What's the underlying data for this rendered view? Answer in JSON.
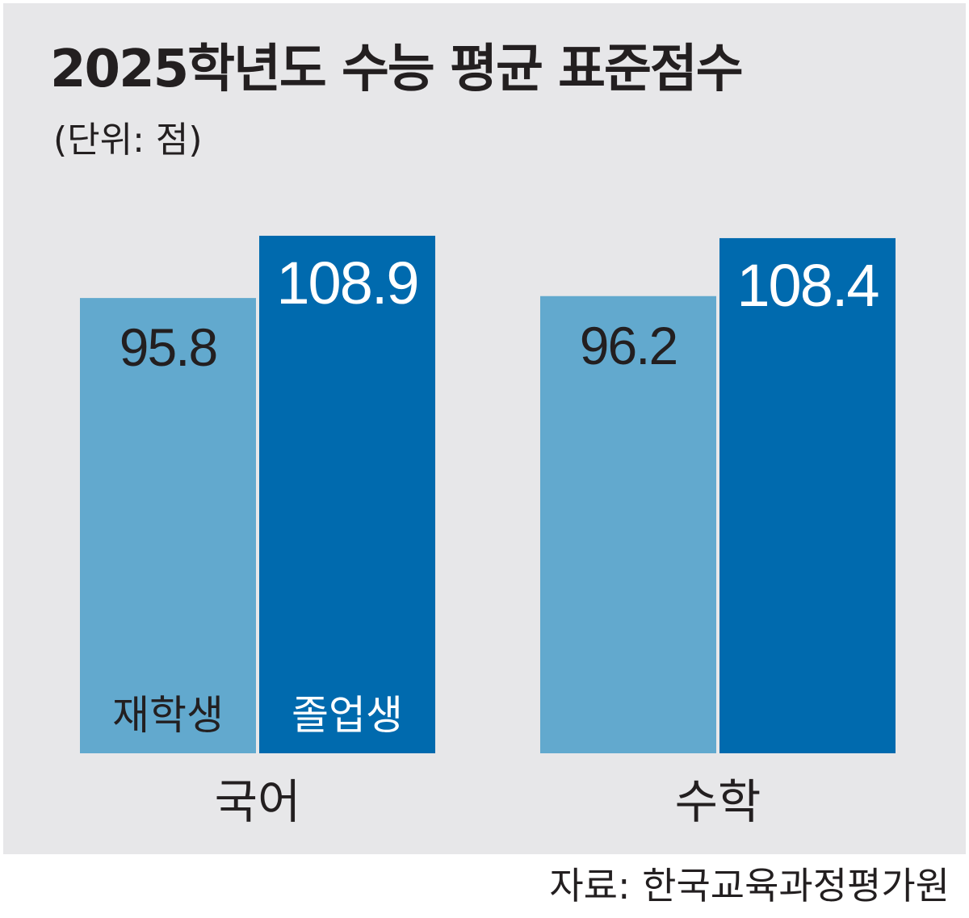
{
  "title": "2025학년도 수능 평균 표준점수",
  "unit": "(단위: 점)",
  "source": "자료: 한국교육과정평가원",
  "colors": {
    "background": "#e7e7e9",
    "재학생": "#62a9ce",
    "졸업생": "#006aae",
    "text_dark": "#231f20",
    "text_light": "#ffffff"
  },
  "chart_data": {
    "type": "bar",
    "title": "2025학년도 수능 평균 표준점수",
    "unit": "(단위: 점)",
    "categories": [
      "국어",
      "수학"
    ],
    "series": [
      {
        "name": "재학생",
        "values": [
          95.8,
          96.2
        ],
        "color": "#62a9ce"
      },
      {
        "name": "졸업생",
        "values": [
          108.9,
          108.4
        ],
        "color": "#006aae"
      }
    ],
    "value_labels": [
      [
        "95.8",
        "96.2"
      ],
      [
        "108.9",
        "108.4"
      ]
    ],
    "grid": false,
    "legend": "inside bars"
  }
}
